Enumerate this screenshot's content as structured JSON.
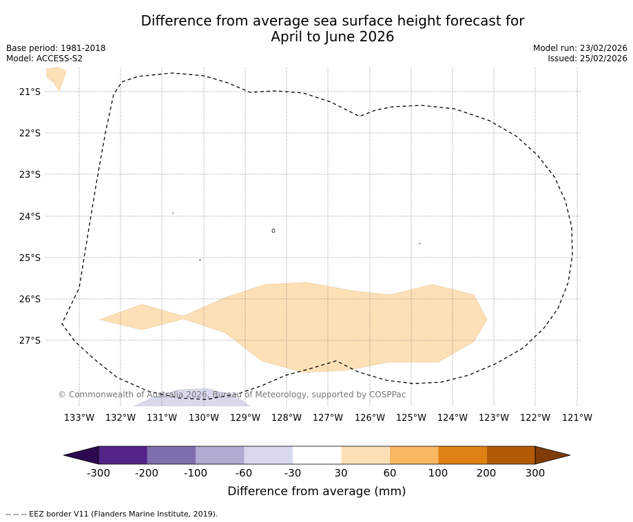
{
  "title": {
    "line1": "Difference from average sea surface height forecast for",
    "line2": "April to June 2026"
  },
  "meta": {
    "base_period": "Base period: 1981-2018",
    "model": "Model: ACCESS-S2",
    "model_run": "Model run: 23/02/2026",
    "issued": "Issued: 25/02/2026"
  },
  "map": {
    "lon_labels": [
      "133°W",
      "132°W",
      "131°W",
      "130°W",
      "129°W",
      "128°W",
      "127°W",
      "126°W",
      "125°W",
      "124°W",
      "123°W",
      "122°W",
      "121°W"
    ],
    "lat_labels": [
      "21°S",
      "22°S",
      "23°S",
      "24°S",
      "25°S",
      "26°S",
      "27°S"
    ],
    "copyright": "© Commonwealth of Australia 2026, Bureau of Meteorology, supported by COSPPac",
    "colors": {
      "positive_30_60": "#fde0b6",
      "negative_30_60": "#d8d9ec",
      "eez_line": "#000000"
    }
  },
  "legend": {
    "title": "Difference from average (mm)",
    "ticks": [
      "-300",
      "-200",
      "-100",
      "-60",
      "-30",
      "30",
      "60",
      "100",
      "200",
      "300"
    ],
    "colors": [
      "#2d0a4f",
      "#542488",
      "#7f6fac",
      "#b0abd3",
      "#d8d9ec",
      "#ffffff",
      "#fde0b6",
      "#fbb862",
      "#e08114",
      "#b35a07",
      "#7f3b08"
    ]
  },
  "footer": "--  --  -- EEZ border V11 (Flanders Marine Institute, 2019)."
}
